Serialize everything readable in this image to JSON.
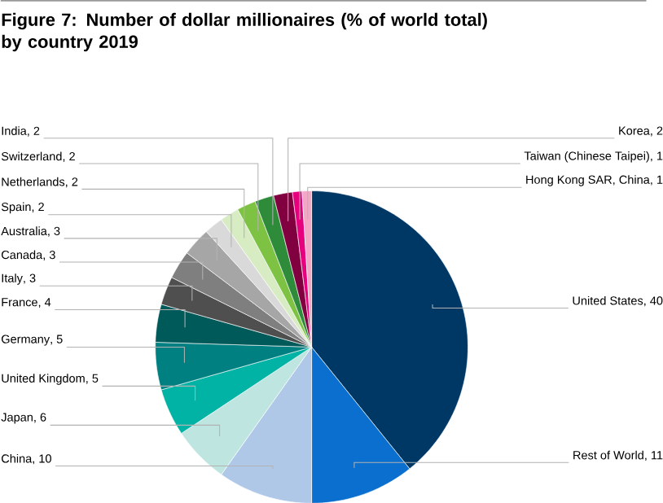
{
  "chart_data": {
    "type": "pie",
    "title": "Figure 7: Number of dollar millionaires (% of world total) by country 2019",
    "categories": [
      "United States",
      "Rest of World",
      "China",
      "Japan",
      "United Kingdom",
      "Germany",
      "France",
      "Italy",
      "Canada",
      "Australia",
      "Spain",
      "Netherlands",
      "Switzerland",
      "India",
      "Korea",
      "Taiwan (Chinese Taipei)",
      "Hong Kong SAR, China"
    ],
    "values": [
      40,
      11,
      10,
      6,
      5,
      5,
      4,
      3,
      3,
      3,
      2,
      2,
      2,
      2,
      2,
      1,
      1
    ],
    "colors": [
      "#003865",
      "#0a6fcf",
      "#b0c8e8",
      "#bfe5e0",
      "#00b3a4",
      "#008080",
      "#005a5a",
      "#4f4f4f",
      "#7f7f7f",
      "#a6a6a6",
      "#d9d9d9",
      "#d8ecc4",
      "#7dc242",
      "#2e8b3a",
      "#800040",
      "#e6007e",
      "#f4a6c6"
    ],
    "value_labels": [
      ", 40",
      ", 11",
      ", 10",
      ", 6",
      ", 5",
      ", 5",
      ", 4",
      ", 3",
      ", 3",
      ", 3",
      ", 2",
      ", 2",
      ", 2",
      ", 2",
      ", 2",
      ", 1",
      ", 1"
    ]
  }
}
